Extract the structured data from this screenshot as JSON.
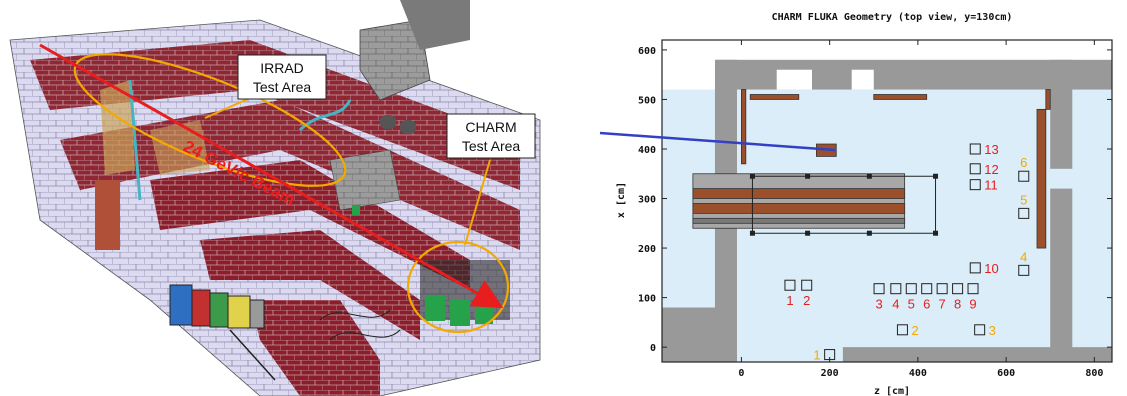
{
  "left_panel": {
    "callouts": [
      {
        "id": "irrad",
        "line1": "IRRAD",
        "line2": "Test Area"
      },
      {
        "id": "charm",
        "line1": "CHARM",
        "line2": "Test Area"
      }
    ],
    "beam_label": "24 GeV/c Beam",
    "colors": {
      "brick": "#8b1e2a",
      "block": "#d9d7ee",
      "annotation": "#f2a900",
      "beam": "#e81e1e"
    }
  },
  "right_panel": {
    "title": "CHARM FLUKA Geometry (top view, y=130cm)",
    "xlabel": "z [cm]",
    "ylabel": "x [cm]",
    "xticks": [
      "0",
      "200",
      "400",
      "600",
      "800"
    ],
    "yticks": [
      "0",
      "100",
      "200",
      "300",
      "400",
      "500",
      "600"
    ],
    "positions_red": [
      {
        "label": "1",
        "z": 110,
        "x": 125
      },
      {
        "label": "2",
        "z": 148,
        "x": 125
      },
      {
        "label": "3",
        "z": 312,
        "x": 118
      },
      {
        "label": "4",
        "z": 350,
        "x": 118
      },
      {
        "label": "5",
        "z": 385,
        "x": 118
      },
      {
        "label": "6",
        "z": 420,
        "x": 118
      },
      {
        "label": "7",
        "z": 455,
        "x": 118
      },
      {
        "label": "8",
        "z": 490,
        "x": 118
      },
      {
        "label": "9",
        "z": 525,
        "x": 118
      },
      {
        "label": "10",
        "z": 530,
        "x": 160
      },
      {
        "label": "11",
        "z": 530,
        "x": 328
      },
      {
        "label": "12",
        "z": 530,
        "x": 360
      },
      {
        "label": "13",
        "z": 530,
        "x": 400
      }
    ],
    "positions_orange": [
      {
        "label": "1",
        "z": 200,
        "x": -15
      },
      {
        "label": "2",
        "z": 365,
        "x": 35
      },
      {
        "label": "3",
        "z": 540,
        "x": 35
      },
      {
        "label": "4",
        "z": 640,
        "x": 155
      },
      {
        "label": "5",
        "z": 640,
        "x": 270
      },
      {
        "label": "6",
        "z": 640,
        "x": 345
      }
    ],
    "colors": {
      "room": "#daedf8",
      "wall": "#999999",
      "wood": "#9b4f2b",
      "red_label": "#e81e1e",
      "orange_label": "#f2a900",
      "beam": "#3340c4"
    }
  }
}
